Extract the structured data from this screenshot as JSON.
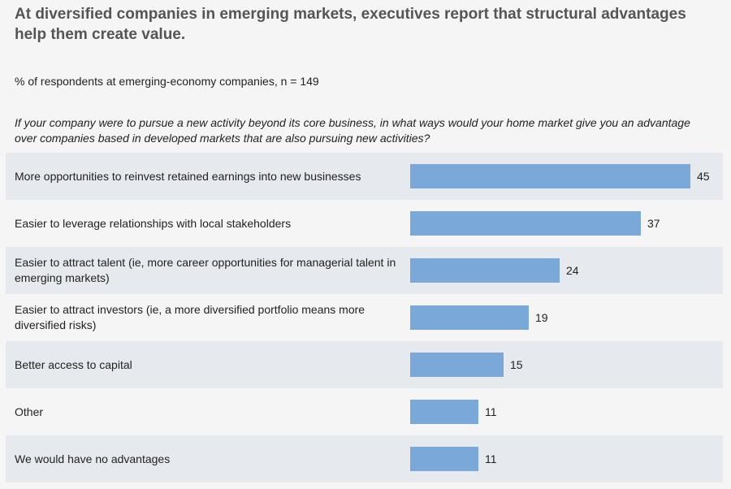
{
  "title": "At diversified companies in emerging markets, executives report that structural advantages help them create value.",
  "subtitle": "% of respondents at emerging-economy companies, n = 149",
  "question": "If your company were to pursue a new activity beyond its core business, in what ways would your home market give you an advantage over companies based in developed markets that are also pursuing new activities?",
  "colors": {
    "bar": "#7aa9d9",
    "row_shade": "#e6e9ed",
    "background": "#f5f5f5",
    "title": "#555555"
  },
  "chart_data": {
    "type": "bar",
    "orientation": "horizontal",
    "categories": [
      "More opportunities to reinvest retained earnings into new businesses",
      "Easier to leverage relationships with local stakeholders",
      "Easier to attract talent (ie, more career opportunities for managerial talent in emerging markets)",
      "Easier to attract investors (ie, a more diversified portfolio means more diversified risks)",
      "Better access to capital",
      "Other",
      "We would have no advantages"
    ],
    "values": [
      45,
      37,
      24,
      19,
      15,
      11,
      11
    ],
    "title": "At diversified companies in emerging markets, executives report that structural advantages help them create value.",
    "xlabel": "",
    "ylabel": "",
    "xlim": [
      0,
      45
    ],
    "grid": false,
    "legend": "none"
  }
}
